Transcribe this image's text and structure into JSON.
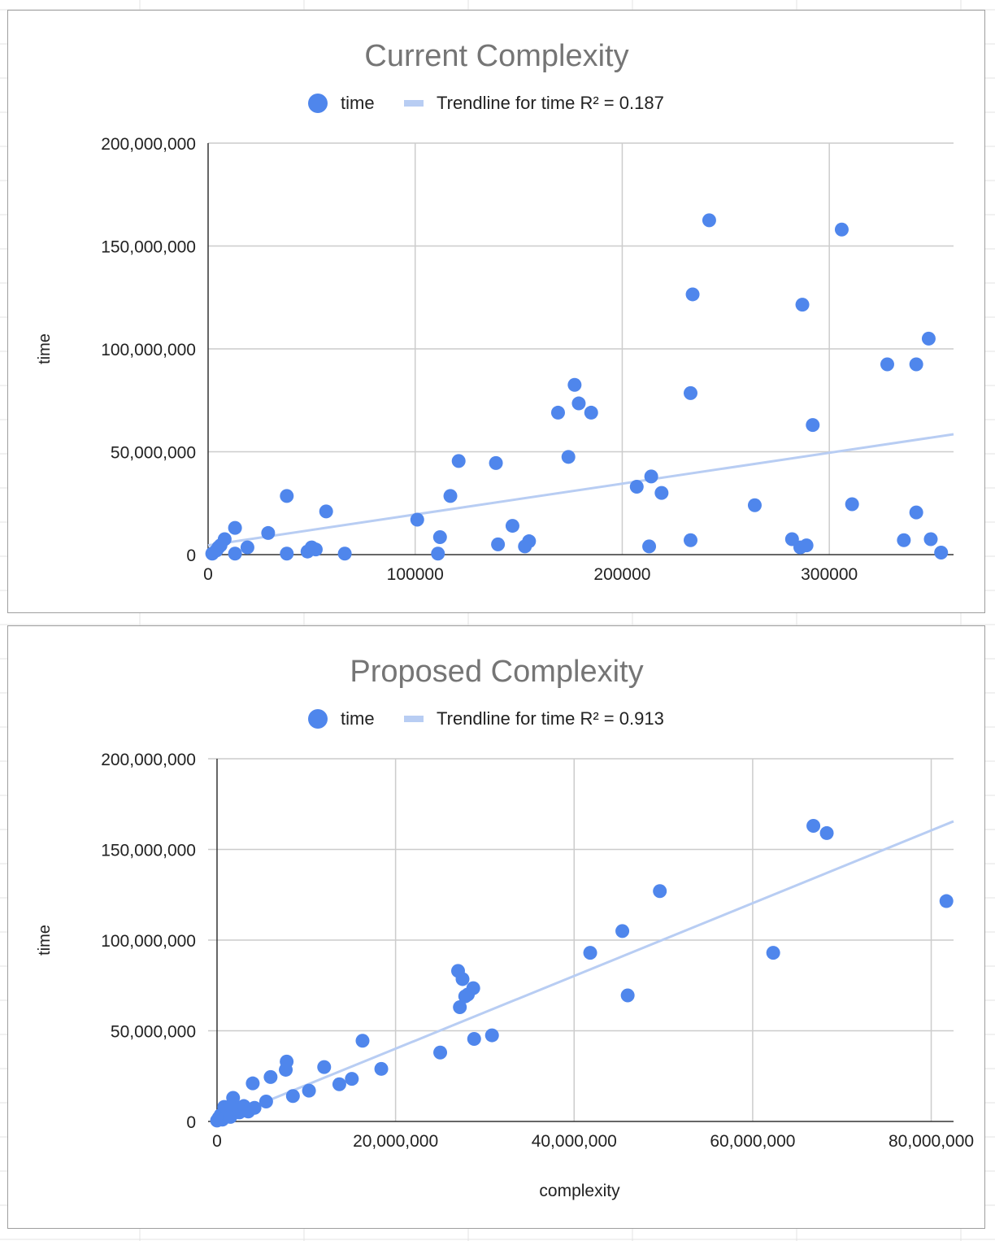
{
  "colors": {
    "point": "#4f86ec",
    "trend": "#b8cdf3",
    "grid": "#cccccc",
    "axis": "#333333",
    "title": "#757575",
    "text": "#222222"
  },
  "chart_data": [
    {
      "type": "scatter",
      "title": "Current Complexity",
      "xlabel": "",
      "ylabel": "time",
      "xlim": [
        0,
        360000
      ],
      "ylim": [
        0,
        200000000
      ],
      "x_ticks": [
        0,
        100000,
        200000,
        300000
      ],
      "x_tick_labels": [
        "0",
        "100000",
        "200000",
        "300000"
      ],
      "y_ticks": [
        0,
        50000000,
        100000000,
        150000000,
        200000000
      ],
      "y_tick_labels": [
        "0",
        "50,000,000",
        "100,000,000",
        "150,000,000",
        "200,000,000"
      ],
      "grid": true,
      "legend": {
        "placement": "top",
        "entries": [
          "time",
          "Trendline for time R² = 0.187"
        ]
      },
      "series": [
        {
          "name": "time",
          "x": [
            2000,
            4000,
            5000,
            6000,
            8000,
            13000,
            13000,
            19000,
            29000,
            38000,
            38000,
            48000,
            50000,
            52000,
            57000,
            66000,
            101000,
            111000,
            112000,
            117000,
            121000,
            140000,
            139000,
            147000,
            153000,
            155000,
            169000,
            174000,
            177000,
            179000,
            185000,
            207000,
            213000,
            214000,
            219000,
            233000,
            233000,
            234000,
            242000,
            264000,
            282000,
            286000,
            289000,
            287000,
            292000,
            306000,
            311000,
            328000,
            336000,
            342000,
            342000,
            348000,
            349000,
            354000
          ],
          "y": [
            500000,
            2000000,
            3500000,
            4500000,
            7500000,
            13000000,
            500000,
            3500000,
            10500000,
            28500000,
            500000,
            1500000,
            3500000,
            2500000,
            21000000,
            500000,
            17000000,
            500000,
            8500000,
            28500000,
            45500000,
            5000000,
            44500000,
            14000000,
            4000000,
            6500000,
            69000000,
            47500000,
            82500000,
            73500000,
            69000000,
            33000000,
            4000000,
            38000000,
            30000000,
            78500000,
            7000000,
            126500000,
            162500000,
            24000000,
            7500000,
            3500000,
            4500000,
            121500000,
            63000000,
            158000000,
            24500000,
            92500000,
            7000000,
            92500000,
            20500000,
            105000000,
            7500000,
            1000000
          ]
        }
      ],
      "trendline": {
        "name": "Trendline for time R² = 0.187",
        "r2": 0.187,
        "x": [
          0,
          360000
        ],
        "y": [
          4500000,
          58500000
        ]
      }
    },
    {
      "type": "scatter",
      "title": "Proposed Complexity",
      "xlabel": "complexity",
      "ylabel": "time",
      "xlim": [
        -1000000,
        82500000
      ],
      "ylim": [
        0,
        200000000
      ],
      "x_ticks": [
        0,
        20000000,
        40000000,
        60000000,
        80000000
      ],
      "x_tick_labels": [
        "0",
        "20,000,000",
        "40,000,000",
        "60,000,000",
        "80,000,000"
      ],
      "y_ticks": [
        0,
        50000000,
        100000000,
        150000000,
        200000000
      ],
      "y_tick_labels": [
        "0",
        "50,000,000",
        "100,000,000",
        "150,000,000",
        "200,000,000"
      ],
      "grid": true,
      "legend": {
        "placement": "top",
        "entries": [
          "time",
          "Trendline for time R² = 0.913"
        ]
      },
      "series": [
        {
          "name": "time",
          "x": [
            0,
            200000,
            400000,
            600000,
            800000,
            1000000,
            1200000,
            1500000,
            1800000,
            2000000,
            2500000,
            3000000,
            3500000,
            4000000,
            4200000,
            5500000,
            6000000,
            7700000,
            7800000,
            8500000,
            10300000,
            12000000,
            13700000,
            15100000,
            16300000,
            18400000,
            25000000,
            27000000,
            27200000,
            27500000,
            27800000,
            28100000,
            28700000,
            28800000,
            30800000,
            41800000,
            45400000,
            46000000,
            49600000,
            62300000,
            66800000,
            68300000,
            81700000
          ],
          "y": [
            500000,
            2000000,
            3500000,
            1000000,
            8000000,
            4500000,
            6000000,
            2500000,
            13000000,
            7000000,
            5000000,
            8500000,
            5500000,
            21000000,
            7500000,
            11000000,
            24500000,
            28500000,
            33000000,
            14000000,
            17000000,
            30000000,
            20500000,
            23500000,
            44500000,
            29000000,
            38000000,
            83000000,
            63000000,
            78500000,
            69000000,
            70000000,
            73500000,
            45500000,
            47500000,
            93000000,
            105000000,
            69500000,
            127000000,
            93000000,
            163000000,
            159000000,
            121500000
          ]
        }
      ],
      "trendline": {
        "name": "Trendline for time R² = 0.913",
        "r2": 0.913,
        "x": [
          0,
          82500000
        ],
        "y": [
          0,
          165500000
        ]
      }
    }
  ]
}
